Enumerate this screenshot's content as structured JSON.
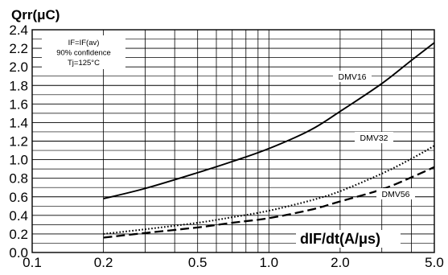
{
  "chart_data": {
    "type": "line",
    "ylabel": "Qrr(μC)",
    "xlabel": "dIF/dt(A/μs)",
    "x_scale": "log",
    "xlim": [
      0.1,
      5.0
    ],
    "ylim": [
      0.0,
      2.4
    ],
    "x_ticks": [
      {
        "value": 0.1,
        "label": "0.1"
      },
      {
        "value": 0.2,
        "label": "0.2"
      },
      {
        "value": 0.5,
        "label": "0.5"
      },
      {
        "value": 1.0,
        "label": "1.0"
      },
      {
        "value": 2.0,
        "label": "2.0"
      },
      {
        "value": 5.0,
        "label": "5.0"
      }
    ],
    "y_ticks": [
      "0.0",
      "0.2",
      "0.4",
      "0.6",
      "0.8",
      "1.0",
      "1.2",
      "1.4",
      "1.6",
      "1.8",
      "2.0",
      "2.2",
      "2.4"
    ],
    "grid": true,
    "annotation": [
      "IF=IF(av)",
      "90% confidence",
      "Tj=125°C"
    ],
    "series": [
      {
        "name": "DMV16",
        "style": "solid",
        "x": [
          0.2,
          0.3,
          0.5,
          0.7,
          1.0,
          1.5,
          2.0,
          3.0,
          4.0,
          5.0
        ],
        "y": [
          0.58,
          0.69,
          0.86,
          0.98,
          1.12,
          1.32,
          1.52,
          1.82,
          2.07,
          2.26
        ]
      },
      {
        "name": "DMV32",
        "style": "dotted",
        "x": [
          0.2,
          0.3,
          0.5,
          0.7,
          1.0,
          1.5,
          2.0,
          3.0,
          4.0,
          5.0
        ],
        "y": [
          0.2,
          0.25,
          0.32,
          0.38,
          0.45,
          0.56,
          0.66,
          0.85,
          1.01,
          1.15
        ]
      },
      {
        "name": "DMV56",
        "style": "dashed",
        "x": [
          0.2,
          0.3,
          0.5,
          0.7,
          1.0,
          1.5,
          2.0,
          3.0,
          4.0,
          5.0
        ],
        "y": [
          0.16,
          0.21,
          0.27,
          0.32,
          0.37,
          0.46,
          0.55,
          0.68,
          0.81,
          0.92
        ]
      }
    ]
  }
}
